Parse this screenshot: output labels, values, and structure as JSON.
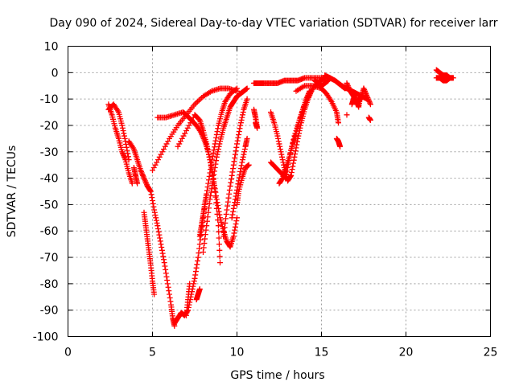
{
  "chart_data": {
    "type": "scatter",
    "title": "Day 090 of 2024, Sidereal Day-to-day VTEC variation (SDTVAR) for receiver larr",
    "xlabel": "GPS time / hours",
    "ylabel": "SDTVAR / TECUs",
    "xlim": [
      0,
      25
    ],
    "ylim": [
      -100,
      10
    ],
    "x_ticks": [
      0,
      5,
      10,
      15,
      20,
      25
    ],
    "y_ticks": [
      10,
      0,
      -10,
      -20,
      -30,
      -40,
      -50,
      -60,
      -70,
      -80,
      -90,
      -100
    ],
    "x_tick_labels": [
      "0",
      "5",
      "10",
      "15",
      "20",
      "25"
    ],
    "y_tick_labels": [
      "10",
      "0",
      "-10",
      "-20",
      "-30",
      "-40",
      "-50",
      "-60",
      "-70",
      "-80",
      "-90",
      "-100"
    ],
    "grid": true,
    "marker": "+",
    "color": "#ff0000",
    "series": [
      {
        "x": [
          2.4,
          2.6,
          2.8,
          3.0,
          3.2,
          3.4,
          3.6,
          3.8
        ],
        "y": [
          -12,
          -16,
          -21,
          -25,
          -30,
          -33,
          -38,
          -42
        ]
      },
      {
        "x": [
          2.4,
          2.7,
          3.0,
          3.2,
          3.4,
          3.6
        ],
        "y": [
          -14,
          -12,
          -15,
          -20,
          -26,
          -33
        ]
      },
      {
        "x": [
          3.6,
          3.9,
          4.1,
          4.3,
          4.5,
          4.7,
          4.9,
          5.1,
          5.3,
          5.5,
          5.7,
          5.9,
          6.1,
          6.2,
          6.3
        ],
        "y": [
          -26,
          -29,
          -33,
          -37,
          -40,
          -43,
          -45,
          -52,
          -58,
          -65,
          -72,
          -80,
          -88,
          -93,
          -96
        ]
      },
      {
        "x": [
          4.5,
          4.6,
          4.7,
          4.8,
          4.9,
          5.0,
          5.1
        ],
        "y": [
          -53,
          -58,
          -63,
          -68,
          -73,
          -79,
          -84
        ]
      },
      {
        "x": [
          3.9,
          4.0,
          4.1
        ],
        "y": [
          -36,
          -39,
          -42
        ]
      },
      {
        "x": [
          5.0,
          5.5,
          6.0,
          6.5,
          7.0,
          7.5,
          8.0,
          8.5,
          9.0,
          9.5,
          10.0
        ],
        "y": [
          -37,
          -31,
          -25,
          -20,
          -16,
          -12,
          -9,
          -7,
          -6,
          -6,
          -7
        ]
      },
      {
        "x": [
          5.3,
          5.8,
          6.3,
          6.8,
          7.0,
          7.3,
          7.6,
          7.9,
          8.1,
          8.3,
          8.5,
          8.7,
          8.9,
          9.0
        ],
        "y": [
          -17,
          -17,
          -16,
          -15,
          -16,
          -18,
          -20,
          -23,
          -26,
          -30,
          -36,
          -45,
          -58,
          -72
        ]
      },
      {
        "x": [
          6.3,
          6.5,
          6.7,
          6.9,
          7.1,
          7.3,
          7.5,
          7.7,
          7.9,
          8.1,
          8.3,
          8.5,
          8.7,
          8.9,
          9.1,
          9.3,
          9.6,
          10.0
        ],
        "y": [
          -95,
          -93,
          -91,
          -92,
          -90,
          -84,
          -78,
          -70,
          -60,
          -50,
          -42,
          -34,
          -27,
          -20,
          -15,
          -11,
          -8,
          -6
        ]
      },
      {
        "x": [
          6.5,
          7.0,
          7.5,
          7.8,
          8.0,
          8.2,
          8.4,
          8.6,
          8.8,
          9.0,
          9.2,
          9.4,
          9.6,
          9.8,
          10.0
        ],
        "y": [
          -28,
          -22,
          -16,
          -18,
          -22,
          -27,
          -33,
          -40,
          -48,
          -55,
          -60,
          -64,
          -66,
          -62,
          -55
        ]
      },
      {
        "x": [
          7.0,
          7.1,
          7.2
        ],
        "y": [
          -92,
          -86,
          -80
        ]
      },
      {
        "x": [
          7.6,
          7.7,
          7.8
        ],
        "y": [
          -86,
          -84,
          -82
        ]
      },
      {
        "x": [
          7.8,
          7.9,
          8.0,
          8.1,
          8.2
        ],
        "y": [
          -62,
          -58,
          -54,
          -50,
          -46
        ]
      },
      {
        "x": [
          8.0,
          8.2,
          8.4,
          8.6,
          8.8,
          9.0,
          9.2,
          9.4,
          9.6,
          9.8,
          10.0,
          10.2,
          10.4,
          10.6
        ],
        "y": [
          -68,
          -58,
          -48,
          -40,
          -32,
          -26,
          -21,
          -17,
          -13,
          -11,
          -9,
          -8,
          -7,
          -6
        ]
      },
      {
        "x": [
          9.2,
          9.4,
          9.6,
          9.8,
          10.0,
          10.2,
          10.4,
          10.6
        ],
        "y": [
          -62,
          -52,
          -43,
          -35,
          -27,
          -20,
          -14,
          -10
        ]
      },
      {
        "x": [
          9.7,
          9.9,
          10.1,
          10.3,
          10.5,
          10.6
        ],
        "y": [
          -55,
          -48,
          -41,
          -34,
          -28,
          -25
        ]
      },
      {
        "x": [
          10.0,
          10.1,
          10.3,
          10.5,
          10.7
        ],
        "y": [
          -50,
          -45,
          -40,
          -36,
          -35
        ]
      },
      {
        "x": [
          11.0,
          11.1,
          11.2,
          11.1
        ],
        "y": [
          -14,
          -17,
          -21,
          -19
        ]
      },
      {
        "x": [
          11.0,
          11.3,
          11.6,
          12.0,
          12.4,
          12.8,
          13.2,
          13.6,
          14.0,
          14.5,
          15.0,
          15.5
        ],
        "y": [
          -4,
          -4,
          -4,
          -4,
          -4,
          -3,
          -3,
          -3,
          -2,
          -2,
          -2,
          -2
        ]
      },
      {
        "x": [
          12.0,
          12.2,
          12.4,
          12.6,
          12.8,
          13.0,
          13.2,
          13.4,
          13.6,
          13.8,
          14.0,
          14.2,
          14.4
        ],
        "y": [
          -15,
          -19,
          -24,
          -30,
          -36,
          -41,
          -39,
          -32,
          -25,
          -19,
          -14,
          -10,
          -7
        ]
      },
      {
        "x": [
          12.5,
          12.7,
          12.9,
          13.1,
          13.3,
          13.5,
          13.7,
          13.9,
          14.1,
          14.3
        ],
        "y": [
          -42,
          -40,
          -36,
          -32,
          -27,
          -23,
          -18,
          -14,
          -10,
          -7
        ]
      },
      {
        "x": [
          12.0,
          12.3,
          12.6,
          12.9,
          13.1,
          13.4,
          13.7,
          14.0,
          14.3,
          14.6,
          14.9,
          15.2
        ],
        "y": [
          -34,
          -36,
          -38,
          -40,
          -32,
          -24,
          -18,
          -12,
          -8,
          -5,
          -3,
          -2
        ]
      },
      {
        "x": [
          13.5,
          14.0,
          14.5,
          15.0,
          15.3,
          15.6,
          15.9,
          16.0
        ],
        "y": [
          -7,
          -5,
          -5,
          -6,
          -8,
          -11,
          -15,
          -19
        ]
      },
      {
        "x": [
          14.6,
          14.8,
          15.0,
          15.2,
          15.4
        ],
        "y": [
          -3,
          -4,
          -5,
          -4,
          -3
        ]
      },
      {
        "x": [
          15.2,
          15.5,
          15.8,
          16.0,
          16.2,
          16.4
        ],
        "y": [
          -1,
          -2,
          -3,
          -4,
          -5,
          -6
        ]
      },
      {
        "x": [
          16.2,
          16.5,
          16.8,
          17.1,
          17.4,
          17.7
        ],
        "y": [
          -5,
          -6,
          -7,
          -8,
          -9,
          -10
        ]
      },
      {
        "x": [
          16.5,
          16.7,
          16.9,
          17.1,
          17.3,
          17.5
        ],
        "y": [
          -4,
          -7,
          -9,
          -12,
          -10,
          -6
        ]
      },
      {
        "x": [
          16.8,
          16.9,
          17.0,
          17.1,
          17.2,
          17.3
        ],
        "y": [
          -12,
          -10,
          -8,
          -11,
          -13,
          -9
        ]
      },
      {
        "x": [
          17.5,
          17.7,
          17.9
        ],
        "y": [
          -6,
          -9,
          -12
        ]
      },
      {
        "x": [
          17.8,
          17.9
        ],
        "y": [
          -17,
          -18
        ]
      },
      {
        "x": [
          16.5
        ],
        "y": [
          -16
        ]
      },
      {
        "x": [
          15.9,
          16.0,
          16.1
        ],
        "y": [
          -25,
          -26,
          -28
        ]
      },
      {
        "x": [
          21.8,
          22.0,
          22.2,
          22.4,
          22.6,
          22.8
        ],
        "y": [
          1,
          0,
          -1,
          -1,
          -2,
          -2
        ]
      },
      {
        "x": [
          21.8,
          22.0,
          22.2,
          22.4,
          22.6
        ],
        "y": [
          -2,
          -2,
          -3,
          -3,
          -2
        ]
      }
    ]
  }
}
